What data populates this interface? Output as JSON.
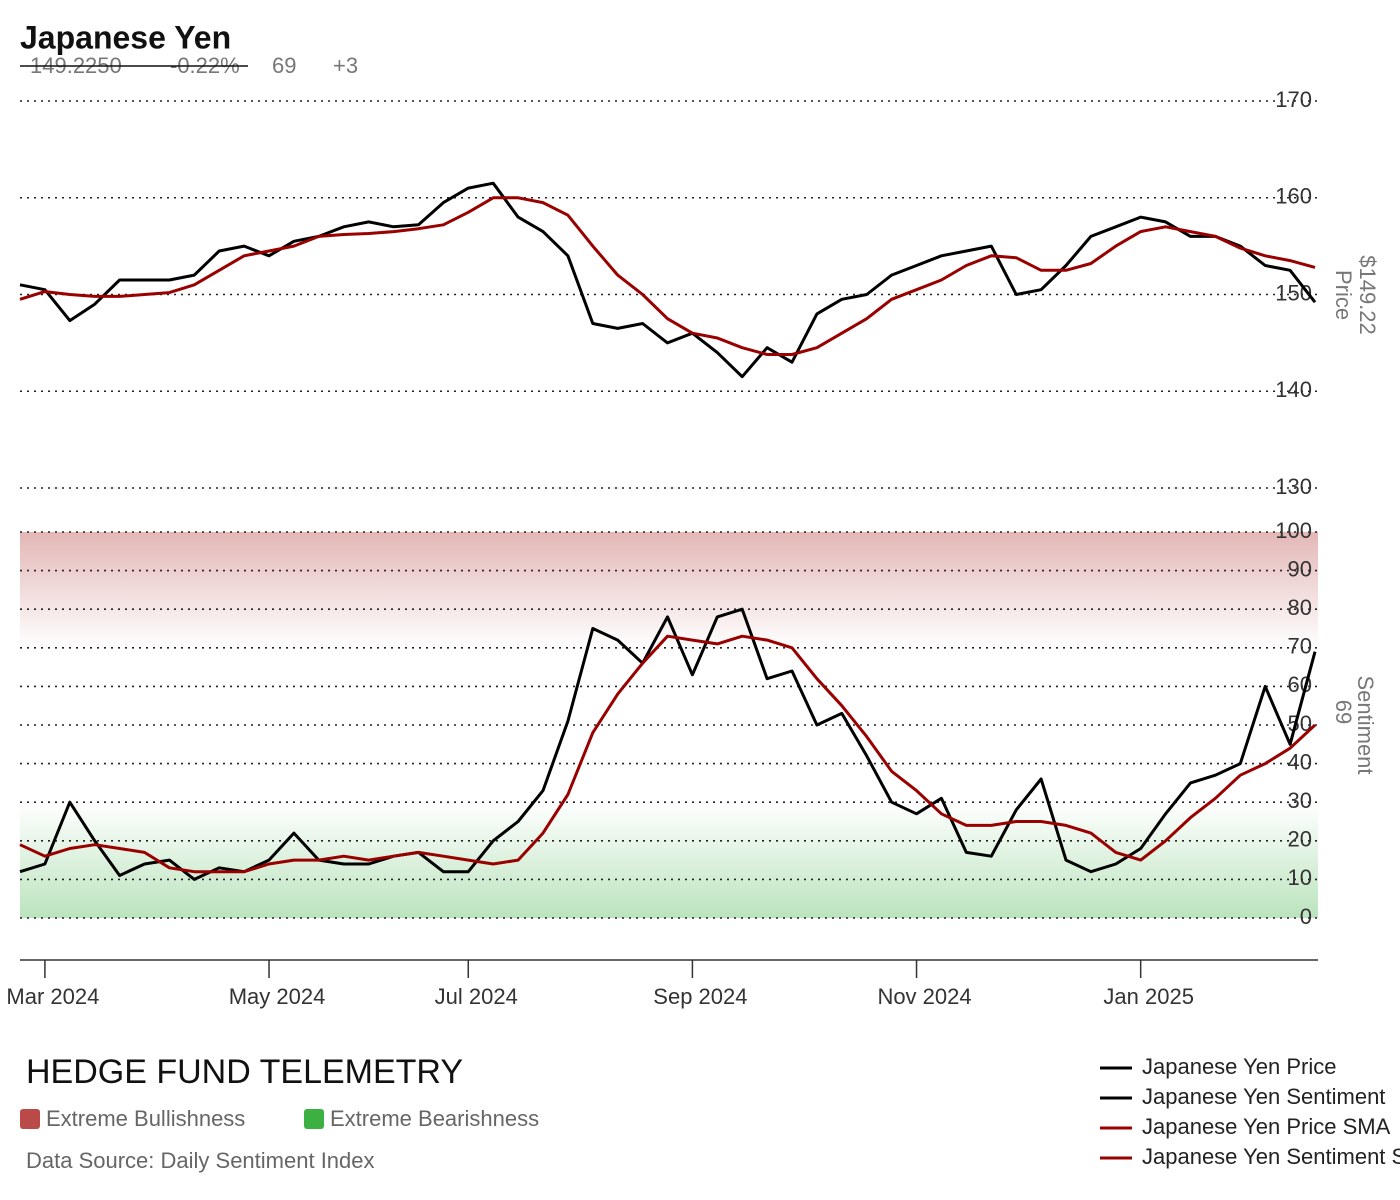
{
  "chart_data": {
    "type": "line",
    "title": "Japanese Yen",
    "header": {
      "price": "149.2250",
      "change": "-0.22%",
      "sentiment": 69,
      "sentiment_change": "+3"
    },
    "brand": "HEDGE FUND TELEMETRY",
    "source": "Data Source: Daily Sentiment Index",
    "categories": [
      null,
      "Mar 2024",
      null,
      null,
      null,
      null,
      null,
      null,
      null,
      null,
      "May 2024",
      null,
      null,
      null,
      null,
      null,
      null,
      null,
      "Jul 2024",
      null,
      null,
      null,
      null,
      null,
      null,
      null,
      null,
      "Sep 2024",
      null,
      null,
      null,
      null,
      null,
      null,
      null,
      null,
      "Nov 2024",
      null,
      null,
      null,
      null,
      null,
      null,
      null,
      null,
      "Jan 2025",
      null,
      null,
      null,
      null,
      null,
      null,
      null
    ],
    "panels": [
      {
        "axis_label": "Price",
        "current_label": "$149.22",
        "ylim": [
          130,
          170
        ],
        "yticks": [
          130,
          140,
          150,
          160,
          170
        ],
        "grid": true,
        "series": [
          {
            "name": "Japanese Yen Price",
            "color": "#000000",
            "values": [
              151,
              150.5,
              147.3,
              149,
              151.5,
              151.5,
              151.5,
              152,
              154.5,
              155,
              154,
              155.5,
              156,
              157,
              157.5,
              157,
              157.2,
              159.5,
              161,
              161.5,
              158,
              156.5,
              154,
              147,
              146.5,
              147,
              145,
              146,
              144,
              141.5,
              144.5,
              143,
              148,
              149.5,
              150,
              152,
              153,
              154,
              154.5,
              155,
              150,
              150.5,
              153,
              156,
              157,
              158,
              157.5,
              156,
              156,
              155,
              153,
              152.5,
              149.2
            ]
          },
          {
            "name": "Japanese Yen Price SMA",
            "color": "#990000",
            "values": [
              149.5,
              150.3,
              150,
              149.8,
              149.8,
              150,
              150.2,
              151,
              152.5,
              154,
              154.5,
              155,
              156,
              156.2,
              156.3,
              156.5,
              156.8,
              157.2,
              158.5,
              160,
              160,
              159.5,
              158.2,
              155,
              152,
              150,
              147.5,
              146,
              145.5,
              144.5,
              143.8,
              143.8,
              144.5,
              146,
              147.5,
              149.5,
              150.5,
              151.5,
              153,
              154,
              153.8,
              152.5,
              152.5,
              153.2,
              155,
              156.5,
              157,
              156.5,
              156,
              154.8,
              154,
              153.5,
              152.8
            ]
          }
        ]
      },
      {
        "axis_label": "Sentiment",
        "current_value": 69,
        "ylim": [
          0,
          100
        ],
        "yticks": [
          0,
          10,
          20,
          30,
          40,
          50,
          60,
          70,
          80,
          90,
          100
        ],
        "grid": true,
        "bands": [
          {
            "name": "Extreme Bullishness",
            "color": "#b94a48",
            "range": [
              70,
              100
            ]
          },
          {
            "name": "Extreme Bearishness",
            "color": "#3cb043",
            "range": [
              0,
              30
            ]
          }
        ],
        "series": [
          {
            "name": "Japanese Yen Sentiment",
            "color": "#000000",
            "values": [
              12,
              14,
              30,
              20,
              11,
              14,
              15,
              10,
              13,
              12,
              15,
              22,
              15,
              14,
              14,
              16,
              17,
              12,
              12,
              20,
              25,
              33,
              51,
              75,
              72,
              66,
              78,
              63,
              78,
              80,
              62,
              64,
              50,
              53,
              42,
              30,
              27,
              31,
              17,
              16,
              28,
              36,
              15,
              12,
              14,
              18,
              27,
              35,
              37,
              40,
              60,
              45,
              69
            ]
          },
          {
            "name": "Japanese Yen Sentiment SMA",
            "color": "#990000",
            "values": [
              19,
              16,
              18,
              19,
              18,
              17,
              13,
              12,
              12,
              12,
              14,
              15,
              15,
              16,
              15,
              16,
              17,
              16,
              15,
              14,
              15,
              22,
              32,
              48,
              58,
              66,
              73,
              72,
              71,
              73,
              72,
              70,
              62,
              55,
              47,
              38,
              33,
              27,
              24,
              24,
              25,
              25,
              24,
              22,
              17,
              15,
              20,
              26,
              31,
              37,
              40,
              44,
              50
            ]
          }
        ]
      }
    ]
  }
}
